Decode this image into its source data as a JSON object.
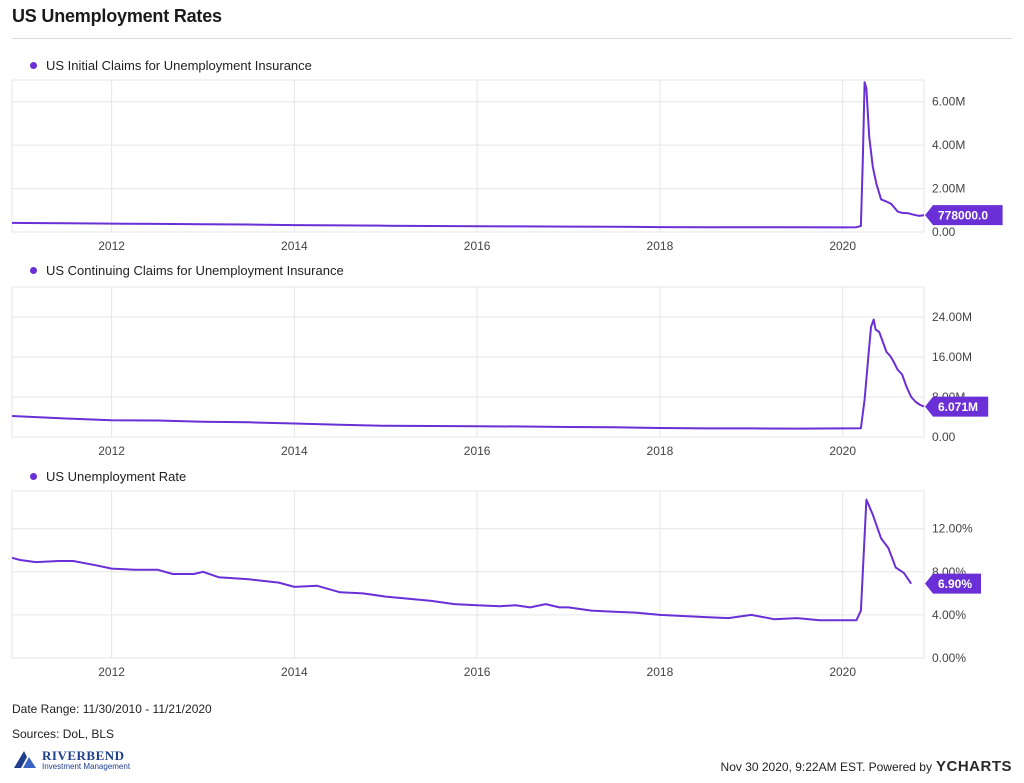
{
  "title": "US Unemployment Rates",
  "colors": {
    "series": "#6a2fd6",
    "grid": "#e6e6e6",
    "rule": "#dddddd"
  },
  "chart_data": [
    {
      "type": "line",
      "legend": "US Initial Claims for Unemployment Insurance",
      "x_ticks": [
        "2012",
        "2014",
        "2016",
        "2018",
        "2020"
      ],
      "y_ticks": [
        "0.00",
        "2.00M",
        "4.00M",
        "6.00M"
      ],
      "y_tick_values": [
        0,
        2000000,
        4000000,
        6000000
      ],
      "xlim": [
        2010.91,
        2020.89
      ],
      "ylim": [
        0,
        7000000
      ],
      "last_value_label": "778000.0",
      "points": [
        [
          2010.91,
          420000
        ],
        [
          2011.25,
          410000
        ],
        [
          2011.5,
          405000
        ],
        [
          2012.0,
          385000
        ],
        [
          2012.5,
          375000
        ],
        [
          2013.0,
          355000
        ],
        [
          2013.5,
          345000
        ],
        [
          2014.0,
          320000
        ],
        [
          2014.5,
          305000
        ],
        [
          2015.0,
          290000
        ],
        [
          2015.5,
          275000
        ],
        [
          2016.0,
          265000
        ],
        [
          2016.5,
          260000
        ],
        [
          2017.0,
          250000
        ],
        [
          2017.5,
          245000
        ],
        [
          2018.0,
          225000
        ],
        [
          2018.5,
          215000
        ],
        [
          2019.0,
          220000
        ],
        [
          2019.5,
          215000
        ],
        [
          2020.0,
          212000
        ],
        [
          2020.15,
          220000
        ],
        [
          2020.2,
          280000
        ],
        [
          2020.22,
          3300000
        ],
        [
          2020.24,
          6900000
        ],
        [
          2020.26,
          6600000
        ],
        [
          2020.29,
          4400000
        ],
        [
          2020.33,
          3000000
        ],
        [
          2020.37,
          2200000
        ],
        [
          2020.42,
          1500000
        ],
        [
          2020.48,
          1400000
        ],
        [
          2020.53,
          1300000
        ],
        [
          2020.57,
          1100000
        ],
        [
          2020.6,
          950000
        ],
        [
          2020.65,
          880000
        ],
        [
          2020.72,
          860000
        ],
        [
          2020.78,
          790000
        ],
        [
          2020.84,
          740000
        ],
        [
          2020.89,
          778000
        ]
      ]
    },
    {
      "type": "line",
      "legend": "US Continuing Claims for Unemployment Insurance",
      "x_ticks": [
        "2012",
        "2014",
        "2016",
        "2018",
        "2020"
      ],
      "y_ticks": [
        "0.00",
        "8.00M",
        "16.00M",
        "24.00M"
      ],
      "y_tick_values": [
        0,
        8000000,
        16000000,
        24000000
      ],
      "xlim": [
        2010.91,
        2020.89
      ],
      "ylim": [
        0,
        30000000
      ],
      "last_value_label": "6.071M",
      "points": [
        [
          2010.91,
          4200000
        ],
        [
          2011.5,
          3700000
        ],
        [
          2012.0,
          3350000
        ],
        [
          2012.5,
          3300000
        ],
        [
          2013.0,
          3050000
        ],
        [
          2013.5,
          2950000
        ],
        [
          2014.0,
          2700000
        ],
        [
          2014.5,
          2450000
        ],
        [
          2015.0,
          2250000
        ],
        [
          2015.5,
          2200000
        ],
        [
          2016.0,
          2150000
        ],
        [
          2016.5,
          2100000
        ],
        [
          2017.0,
          2000000
        ],
        [
          2017.5,
          1950000
        ],
        [
          2018.0,
          1800000
        ],
        [
          2018.5,
          1720000
        ],
        [
          2019.0,
          1720000
        ],
        [
          2019.5,
          1690000
        ],
        [
          2020.0,
          1720000
        ],
        [
          2020.2,
          1750000
        ],
        [
          2020.24,
          7500000
        ],
        [
          2020.28,
          16000000
        ],
        [
          2020.31,
          22000000
        ],
        [
          2020.34,
          23500000
        ],
        [
          2020.36,
          21500000
        ],
        [
          2020.4,
          21000000
        ],
        [
          2020.44,
          19000000
        ],
        [
          2020.48,
          17000000
        ],
        [
          2020.52,
          16200000
        ],
        [
          2020.56,
          15000000
        ],
        [
          2020.6,
          13500000
        ],
        [
          2020.65,
          12500000
        ],
        [
          2020.7,
          10000000
        ],
        [
          2020.75,
          8000000
        ],
        [
          2020.8,
          7000000
        ],
        [
          2020.85,
          6400000
        ],
        [
          2020.89,
          6071000
        ]
      ]
    },
    {
      "type": "line",
      "legend": "US Unemployment Rate",
      "x_ticks": [
        "2012",
        "2014",
        "2016",
        "2018",
        "2020"
      ],
      "y_ticks": [
        "0.00%",
        "4.00%",
        "8.00%",
        "12.00%"
      ],
      "y_tick_values": [
        0,
        4,
        8,
        12
      ],
      "xlim": [
        2010.91,
        2020.89
      ],
      "ylim": [
        0,
        15.5
      ],
      "last_value_label": "6.90%",
      "points": [
        [
          2010.91,
          9.3
        ],
        [
          2011.0,
          9.1
        ],
        [
          2011.17,
          8.9
        ],
        [
          2011.42,
          9.0
        ],
        [
          2011.58,
          9.0
        ],
        [
          2011.83,
          8.6
        ],
        [
          2012.0,
          8.3
        ],
        [
          2012.25,
          8.2
        ],
        [
          2012.5,
          8.2
        ],
        [
          2012.67,
          7.8
        ],
        [
          2012.9,
          7.8
        ],
        [
          2013.0,
          8.0
        ],
        [
          2013.17,
          7.5
        ],
        [
          2013.5,
          7.3
        ],
        [
          2013.83,
          7.0
        ],
        [
          2014.0,
          6.6
        ],
        [
          2014.25,
          6.7
        ],
        [
          2014.5,
          6.1
        ],
        [
          2014.75,
          6.0
        ],
        [
          2015.0,
          5.7
        ],
        [
          2015.25,
          5.5
        ],
        [
          2015.5,
          5.3
        ],
        [
          2015.75,
          5.0
        ],
        [
          2016.0,
          4.9
        ],
        [
          2016.25,
          4.8
        ],
        [
          2016.42,
          4.9
        ],
        [
          2016.58,
          4.7
        ],
        [
          2016.75,
          5.0
        ],
        [
          2016.9,
          4.7
        ],
        [
          2017.0,
          4.7
        ],
        [
          2017.25,
          4.4
        ],
        [
          2017.5,
          4.3
        ],
        [
          2017.75,
          4.2
        ],
        [
          2018.0,
          4.0
        ],
        [
          2018.25,
          3.9
        ],
        [
          2018.5,
          3.8
        ],
        [
          2018.75,
          3.7
        ],
        [
          2019.0,
          4.0
        ],
        [
          2019.25,
          3.6
        ],
        [
          2019.5,
          3.7
        ],
        [
          2019.75,
          3.5
        ],
        [
          2020.0,
          3.5
        ],
        [
          2020.15,
          3.5
        ],
        [
          2020.2,
          4.4
        ],
        [
          2020.26,
          14.7
        ],
        [
          2020.33,
          13.3
        ],
        [
          2020.42,
          11.1
        ],
        [
          2020.5,
          10.2
        ],
        [
          2020.58,
          8.4
        ],
        [
          2020.67,
          7.9
        ],
        [
          2020.75,
          6.9
        ]
      ]
    }
  ],
  "footer": {
    "date_range": "Date Range: 11/30/2010 - 11/21/2020",
    "sources": "Sources: DoL, BLS",
    "timestamp": "Nov 30 2020, 9:22AM EST. Powered by",
    "ycharts": "YCHARTS",
    "logo_name": "RIVERBEND",
    "logo_sub": "Investment Management"
  }
}
